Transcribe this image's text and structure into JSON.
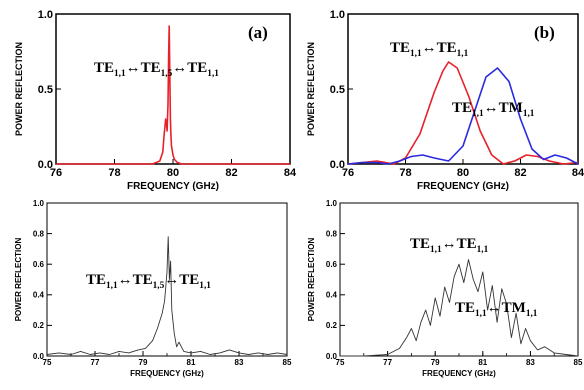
{
  "chart_data": [
    {
      "id": "top-left",
      "type": "line",
      "panel_label": "(a)",
      "xlabel": "FREQUENCY (GHz)",
      "ylabel": "POWER REFLECTION",
      "xlim": [
        76,
        84
      ],
      "ylim": [
        0,
        1.0
      ],
      "xticks": [
        "76",
        "78",
        "80",
        "82",
        "84"
      ],
      "yticks": [
        "0.0",
        "0.5",
        "1.0"
      ],
      "grid": false,
      "annotations": [
        {
          "text": "TE1,1↔TE1,5↔TE1,1"
        }
      ],
      "series": [
        {
          "color": "#e8202a",
          "x": [
            76,
            79.3,
            79.55,
            79.65,
            79.7,
            79.75,
            79.78,
            79.8,
            79.83,
            79.85,
            79.87,
            79.89,
            79.91,
            79.93,
            79.95,
            80.0,
            80.05,
            80.15,
            80.3,
            84
          ],
          "y": [
            0,
            0.0,
            0.02,
            0.08,
            0.2,
            0.3,
            0.26,
            0.22,
            0.4,
            0.7,
            0.92,
            0.6,
            0.3,
            0.18,
            0.12,
            0.06,
            0.03,
            0.01,
            0.0,
            0
          ]
        }
      ]
    },
    {
      "id": "top-right",
      "type": "line",
      "panel_label": "(b)",
      "xlabel": "FREQUENCY (GHz)",
      "ylabel": "POWER REFLECTION",
      "xlim": [
        76,
        84
      ],
      "ylim": [
        0,
        1.0
      ],
      "xticks": [
        "76",
        "78",
        "80",
        "82",
        "84"
      ],
      "yticks": [
        "0.0",
        "0.5",
        "1.0"
      ],
      "grid": false,
      "annotations": [
        {
          "text": "TE1,1↔TE1,1"
        },
        {
          "text": "TE1,1↔TM1,1"
        }
      ],
      "series": [
        {
          "color": "#e8202a",
          "x": [
            76,
            76.5,
            77,
            77.3,
            77.6,
            78,
            78.5,
            79,
            79.3,
            79.5,
            79.8,
            80.2,
            80.6,
            81,
            81.4,
            81.8,
            82.2,
            82.6,
            83,
            83.5,
            84
          ],
          "y": [
            0.0,
            0.01,
            0.02,
            0.01,
            0.0,
            0.04,
            0.2,
            0.48,
            0.62,
            0.68,
            0.64,
            0.45,
            0.22,
            0.06,
            0.0,
            0.02,
            0.06,
            0.05,
            0.02,
            0.0,
            0.01
          ]
        },
        {
          "color": "#2a2ae0",
          "x": [
            76,
            76.5,
            77,
            77.4,
            77.8,
            78.2,
            78.6,
            79,
            79.5,
            80,
            80.4,
            80.8,
            81.2,
            81.6,
            82,
            82.4,
            82.8,
            83.2,
            83.6,
            84
          ],
          "y": [
            0.0,
            0.01,
            0.01,
            0.0,
            0.02,
            0.05,
            0.06,
            0.04,
            0.02,
            0.12,
            0.35,
            0.58,
            0.64,
            0.55,
            0.3,
            0.1,
            0.03,
            0.06,
            0.04,
            0.0
          ]
        }
      ]
    },
    {
      "id": "bottom-left",
      "type": "line",
      "xlabel": "FREQUENCY (GHz)",
      "ylabel": "POWER REFLECTION",
      "xlim": [
        75,
        85
      ],
      "ylim": [
        0,
        1.0
      ],
      "xticks": [
        "75",
        "77",
        "79",
        "81",
        "83",
        "85"
      ],
      "yticks": [
        "0.0",
        "0.2",
        "0.4",
        "0.6",
        "0.8",
        "1.0"
      ],
      "grid": false,
      "annotations": [
        {
          "text": "TE1,1↔TE1,5↔TE1,1"
        }
      ],
      "series": [
        {
          "color": "#333333",
          "x": [
            75,
            75.5,
            76,
            76.4,
            76.8,
            77.2,
            77.6,
            78,
            78.4,
            78.8,
            79.1,
            79.4,
            79.6,
            79.8,
            79.9,
            80.0,
            80.05,
            80.1,
            80.15,
            80.2,
            80.3,
            80.4,
            80.5,
            80.7,
            81,
            81.4,
            81.8,
            82.2,
            82.6,
            83,
            83.4,
            83.8,
            84.2,
            84.6,
            85
          ],
          "y": [
            0.01,
            0.02,
            0.01,
            0.03,
            0.01,
            0.02,
            0.01,
            0.03,
            0.02,
            0.04,
            0.05,
            0.1,
            0.18,
            0.28,
            0.36,
            0.55,
            0.78,
            0.5,
            0.62,
            0.3,
            0.15,
            0.06,
            0.09,
            0.03,
            0.02,
            0.03,
            0.01,
            0.02,
            0.04,
            0.02,
            0.01,
            0.02,
            0.01,
            0.02,
            0.01
          ]
        }
      ]
    },
    {
      "id": "bottom-right",
      "type": "line",
      "xlabel": "FREQUENCY (GHz)",
      "ylabel": "POWER REFLECTION",
      "xlim": [
        75,
        85
      ],
      "ylim": [
        0,
        1.0
      ],
      "xticks": [
        "75",
        "77",
        "79",
        "81",
        "83",
        "85"
      ],
      "yticks": [
        "0.0",
        "0.2",
        "0.4",
        "0.6",
        "0.8",
        "1.0"
      ],
      "grid": false,
      "annotations": [
        {
          "text": "TE1,1↔TE1,1"
        },
        {
          "text": "TE1,1↔TM1,1"
        }
      ],
      "series": [
        {
          "color": "#333333",
          "x": [
            75,
            76,
            77,
            77.5,
            77.8,
            78,
            78.2,
            78.4,
            78.6,
            78.8,
            79,
            79.2,
            79.4,
            79.6,
            79.8,
            80,
            80.2,
            80.4,
            80.6,
            80.8,
            81,
            81.2,
            81.4,
            81.6,
            81.8,
            82,
            82.2,
            82.4,
            82.6,
            82.8,
            83,
            83.3,
            83.6,
            84,
            84.5,
            85
          ],
          "y": [
            0.0,
            0.0,
            0.01,
            0.05,
            0.12,
            0.18,
            0.1,
            0.22,
            0.3,
            0.2,
            0.38,
            0.26,
            0.45,
            0.35,
            0.52,
            0.6,
            0.48,
            0.63,
            0.5,
            0.42,
            0.55,
            0.3,
            0.46,
            0.22,
            0.44,
            0.34,
            0.12,
            0.28,
            0.08,
            0.18,
            0.1,
            0.04,
            0.06,
            0.02,
            0.01,
            0.0
          ]
        }
      ]
    }
  ]
}
